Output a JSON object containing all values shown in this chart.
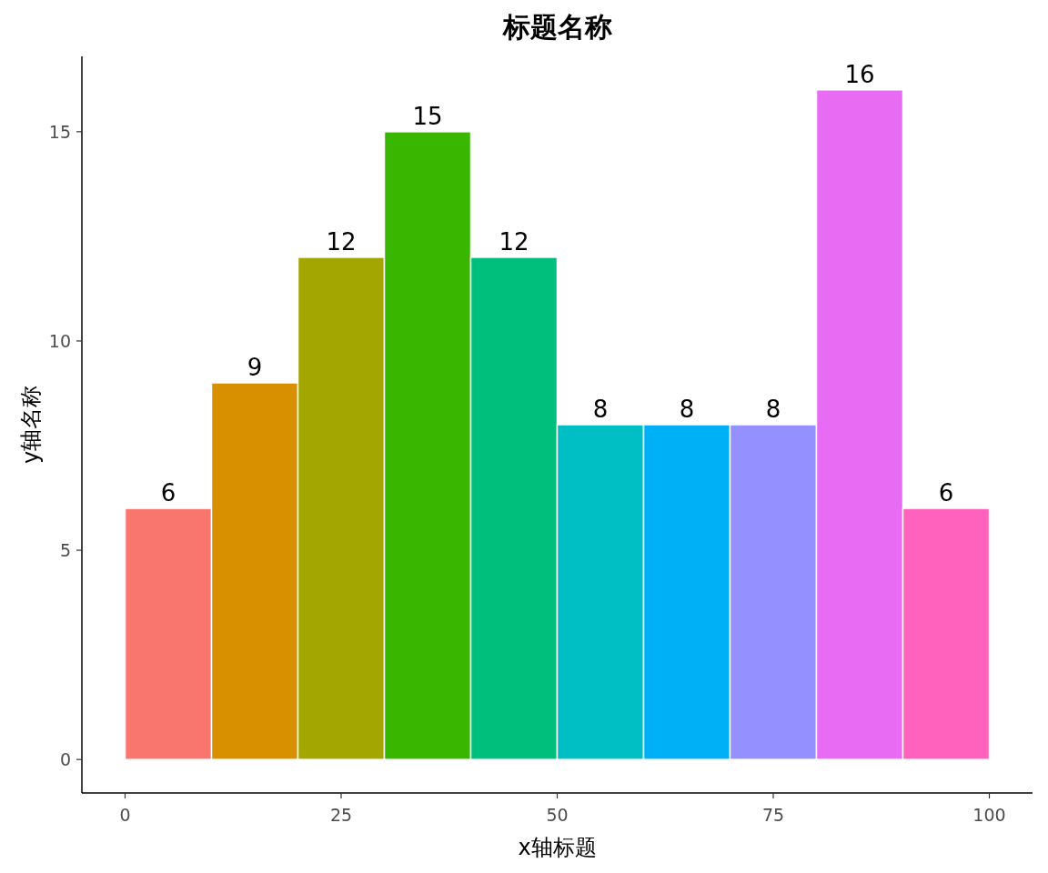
{
  "chart_data": {
    "type": "histogram",
    "title": "标题名称",
    "xlabel": "x轴标题",
    "ylabel": "y轴名称",
    "bins": [
      0,
      10,
      20,
      30,
      40,
      50,
      60,
      70,
      80,
      90,
      100
    ],
    "values": [
      6,
      9,
      12,
      15,
      12,
      8,
      8,
      8,
      16,
      6
    ],
    "colors": [
      "#f8766d",
      "#d89000",
      "#a3a500",
      "#39b600",
      "#00bf7d",
      "#00bfc4",
      "#00b0f6",
      "#9590ff",
      "#e76bf3",
      "#ff62bc"
    ],
    "xlim": [
      -5,
      105
    ],
    "ylim": [
      -0.8,
      16.8
    ],
    "xticks": [
      0,
      25,
      50,
      75,
      100
    ],
    "yticks": [
      0,
      5,
      10,
      15
    ],
    "data_labels": true
  }
}
